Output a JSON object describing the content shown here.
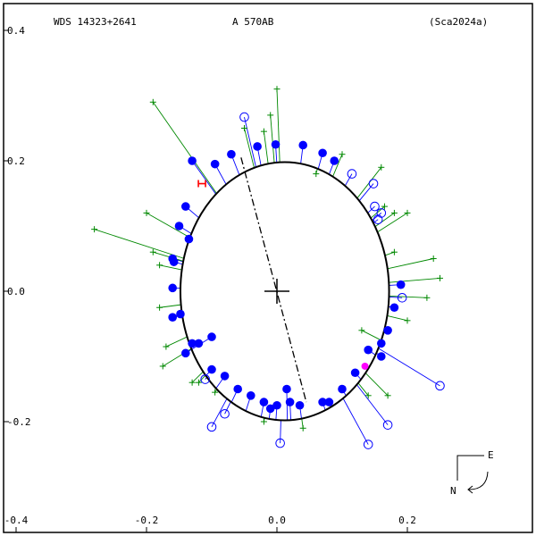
{
  "header": {
    "wds": "WDS 14323+2641",
    "component": "A   570AB",
    "reference": "(Sca2024a)"
  },
  "compass": {
    "east": "E",
    "north": "N"
  },
  "colors": {
    "orbit": "#000000",
    "measure": "#0000ff",
    "micrometer": "#008800",
    "highlight": "#ff00ff",
    "marker": "#ff0000"
  },
  "chart_data": {
    "type": "scatter",
    "title": "",
    "xlim": [
      -0.4,
      0.4
    ],
    "ylim": [
      -0.4,
      0.4
    ],
    "x_ticks": [
      "-0.4",
      "-0.2",
      "0.0",
      "0.2"
    ],
    "y_ticks": [
      "-0.4",
      "-0.2",
      "0.0",
      "0.2",
      "0.4"
    ],
    "orbit": {
      "center": [
        0.012,
        0.0
      ],
      "a_x": 0.16,
      "a_y": 0.198,
      "rotation_deg": 0
    },
    "line_of_nodes": [
      [
        -0.055,
        0.205
      ],
      [
        0.045,
        -0.17
      ]
    ],
    "primary": [
      0.0,
      0.0
    ],
    "series": [
      {
        "marker": "filled-circle",
        "points": [
          [
            -0.13,
            0.2
          ],
          [
            -0.095,
            0.195
          ],
          [
            -0.07,
            0.21
          ],
          [
            -0.03,
            0.222
          ],
          [
            -0.002,
            0.225
          ],
          [
            0.04,
            0.224
          ],
          [
            0.07,
            0.212
          ],
          [
            0.088,
            0.2
          ],
          [
            -0.14,
            0.13
          ],
          [
            -0.15,
            0.1
          ],
          [
            -0.135,
            0.08
          ],
          [
            -0.16,
            0.05
          ],
          [
            -0.158,
            0.045
          ],
          [
            -0.16,
            0.005
          ],
          [
            -0.16,
            -0.04
          ],
          [
            -0.148,
            -0.035
          ],
          [
            -0.13,
            -0.08
          ],
          [
            -0.12,
            -0.08
          ],
          [
            -0.14,
            -0.095
          ],
          [
            -0.1,
            -0.07
          ],
          [
            -0.1,
            -0.12
          ],
          [
            -0.08,
            -0.13
          ],
          [
            -0.06,
            -0.15
          ],
          [
            -0.04,
            -0.16
          ],
          [
            -0.02,
            -0.17
          ],
          [
            -0.01,
            -0.18
          ],
          [
            0.0,
            -0.175
          ],
          [
            0.015,
            -0.15
          ],
          [
            0.02,
            -0.17
          ],
          [
            0.035,
            -0.175
          ],
          [
            0.07,
            -0.17
          ],
          [
            0.08,
            -0.17
          ],
          [
            0.1,
            -0.15
          ],
          [
            0.12,
            -0.125
          ],
          [
            0.14,
            -0.09
          ],
          [
            0.16,
            -0.08
          ],
          [
            0.17,
            -0.06
          ],
          [
            0.18,
            -0.025
          ],
          [
            0.19,
            0.01
          ],
          [
            0.16,
            -0.1
          ]
        ]
      },
      {
        "marker": "open-circle",
        "points": [
          [
            -0.05,
            0.267
          ],
          [
            0.115,
            0.18
          ],
          [
            0.148,
            0.165
          ],
          [
            0.15,
            0.13
          ],
          [
            0.155,
            0.11
          ],
          [
            0.16,
            0.12
          ],
          [
            0.192,
            -0.01
          ],
          [
            0.25,
            -0.145
          ],
          [
            0.17,
            -0.205
          ],
          [
            0.14,
            -0.235
          ],
          [
            0.005,
            -0.233
          ],
          [
            -0.08,
            -0.188
          ],
          [
            -0.1,
            -0.208
          ],
          [
            -0.11,
            -0.135
          ]
        ]
      },
      {
        "marker": "plus",
        "points": [
          [
            -0.19,
            0.29
          ],
          [
            -0.28,
            0.095
          ],
          [
            -0.2,
            0.12
          ],
          [
            -0.19,
            0.06
          ],
          [
            -0.18,
            0.04
          ],
          [
            -0.18,
            -0.025
          ],
          [
            -0.17,
            -0.085
          ],
          [
            -0.175,
            -0.115
          ],
          [
            -0.12,
            -0.14
          ],
          [
            -0.05,
            0.25
          ],
          [
            -0.02,
            0.245
          ],
          [
            -0.01,
            0.27
          ],
          [
            0.0,
            0.31
          ],
          [
            0.06,
            0.18
          ],
          [
            0.1,
            0.21
          ],
          [
            0.16,
            0.19
          ],
          [
            0.165,
            0.13
          ],
          [
            0.18,
            0.12
          ],
          [
            0.2,
            0.12
          ],
          [
            0.18,
            0.06
          ],
          [
            0.24,
            0.05
          ],
          [
            0.23,
            -0.01
          ],
          [
            0.25,
            0.02
          ],
          [
            0.2,
            -0.045
          ],
          [
            0.13,
            -0.06
          ],
          [
            0.17,
            -0.16
          ],
          [
            0.14,
            -0.16
          ],
          [
            0.04,
            -0.21
          ],
          [
            -0.02,
            -0.2
          ],
          [
            -0.13,
            -0.14
          ],
          [
            -0.095,
            -0.155
          ]
        ]
      }
    ],
    "highlight_point": [
      0.135,
      -0.115
    ],
    "marker_point": [
      -0.115,
      0.165
    ]
  }
}
